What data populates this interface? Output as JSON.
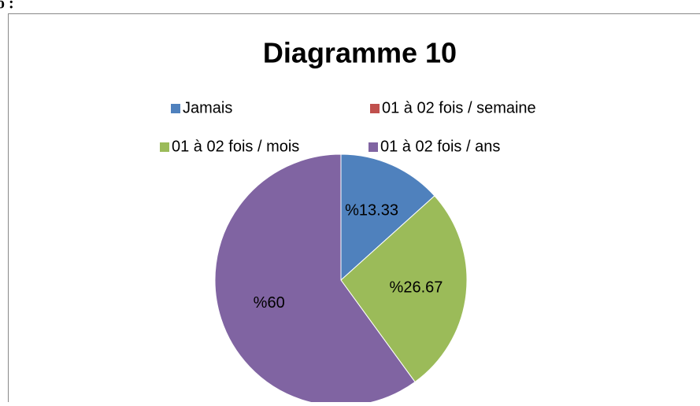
{
  "caption_fragment": "o :",
  "chart_data": {
    "type": "pie",
    "title": "Diagramme 10",
    "categories": [
      "Jamais",
      "01 à 02 fois / semaine",
      "01 à 02 fois / mois",
      "01 à 02 fois / ans"
    ],
    "values": [
      13.33,
      0,
      26.67,
      60
    ],
    "value_labels": [
      "%13.33",
      null,
      "%26.67",
      "%60"
    ],
    "colors": [
      "#4f81bd",
      "#c0504d",
      "#9bbb59",
      "#8064a2"
    ],
    "legend": "top"
  }
}
